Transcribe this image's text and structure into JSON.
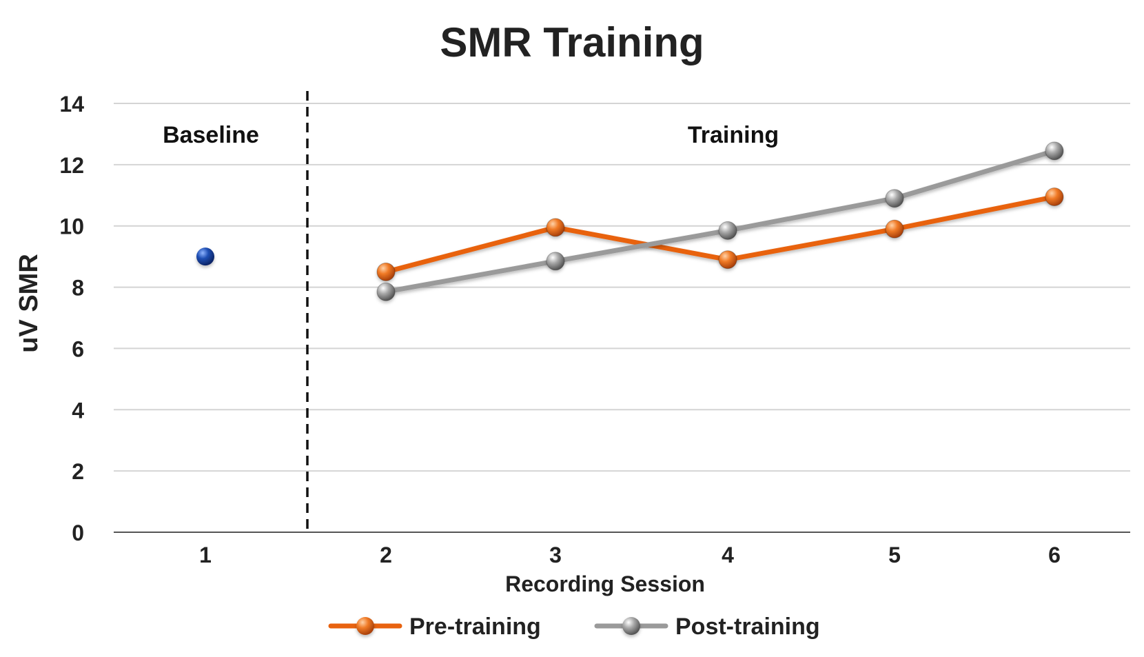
{
  "chart_data": {
    "type": "line",
    "title": "SMR Training",
    "xlabel": "Recording Session",
    "ylabel": "uV SMR",
    "ylim": [
      0,
      14
    ],
    "yticks": [
      0,
      2,
      4,
      6,
      8,
      10,
      12,
      14
    ],
    "categories": [
      "1",
      "2",
      "3",
      "4",
      "5",
      "6"
    ],
    "grid": true,
    "legend_position": "bottom",
    "region_labels": {
      "baseline": "Baseline",
      "training": "Training"
    },
    "baseline": {
      "x": "1",
      "value": 9.0,
      "color": "#1f4fb4"
    },
    "series": [
      {
        "name": "Pre-training",
        "color": "#e8620f",
        "x": [
          "2",
          "3",
          "4",
          "5",
          "6"
        ],
        "values": [
          8.5,
          9.95,
          8.9,
          9.9,
          10.95
        ]
      },
      {
        "name": "Post-training",
        "color": "#9a9a9a",
        "x": [
          "2",
          "3",
          "4",
          "5",
          "6"
        ],
        "values": [
          7.85,
          8.85,
          9.85,
          10.9,
          12.45
        ]
      }
    ]
  }
}
